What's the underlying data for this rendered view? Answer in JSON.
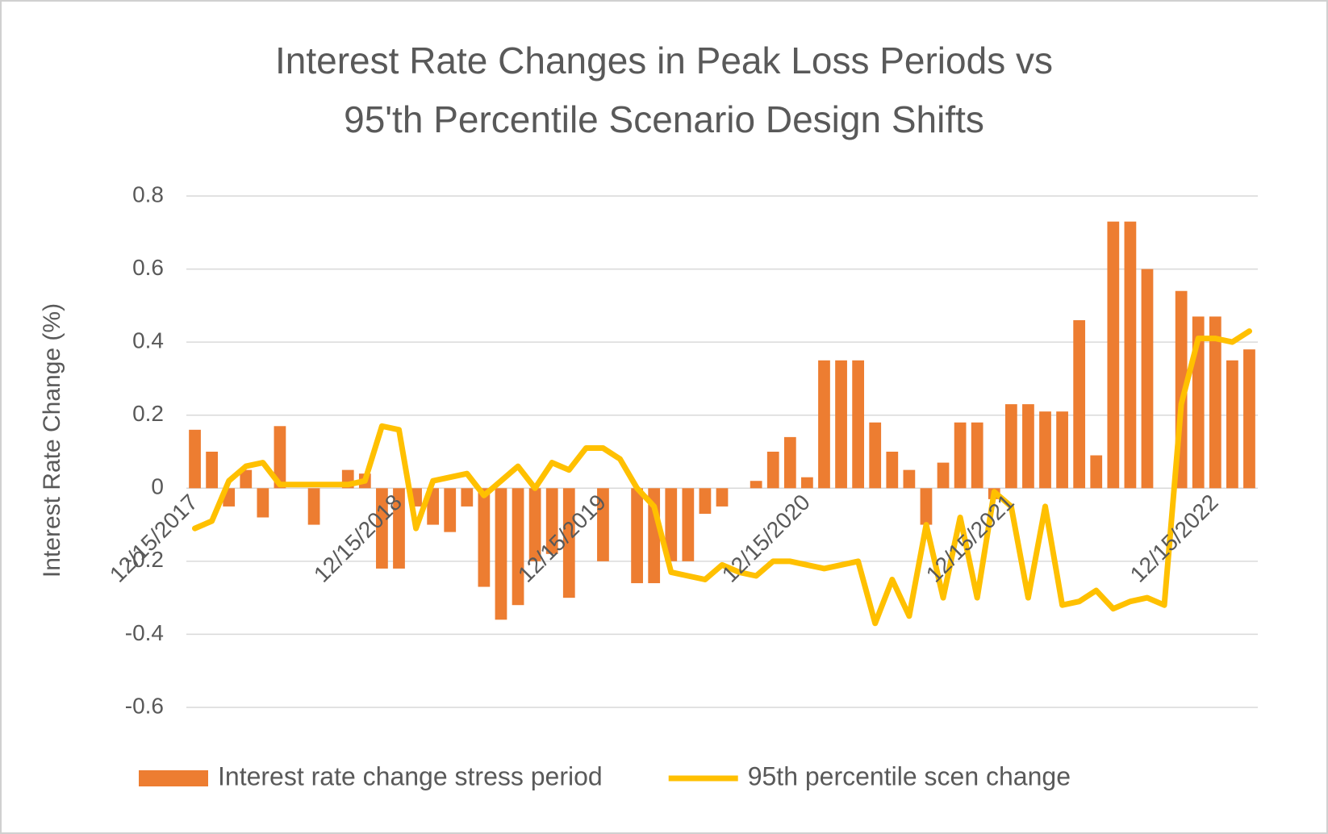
{
  "chart_data": {
    "type": "bar-line",
    "title": [
      "Interest Rate Changes in Peak Loss Periods vs",
      "95'th Percentile Scenario Design Shifts"
    ],
    "y_label": "Interest Rate Change (%)",
    "categories": [
      "12/15/2017",
      null,
      null,
      null,
      null,
      null,
      null,
      null,
      null,
      null,
      null,
      null,
      "12/15/2018",
      null,
      null,
      null,
      null,
      null,
      null,
      null,
      null,
      null,
      null,
      null,
      "12/15/2019",
      null,
      null,
      null,
      null,
      null,
      null,
      null,
      null,
      null,
      null,
      null,
      "12/15/2020",
      null,
      null,
      null,
      null,
      null,
      null,
      null,
      null,
      null,
      null,
      null,
      "12/15/2021",
      null,
      null,
      null,
      null,
      null,
      null,
      null,
      null,
      null,
      null,
      null,
      "12/15/2022",
      null,
      null
    ],
    "series": [
      {
        "name": "Interest rate change stress period",
        "kind": "bar",
        "color": "#ed7d31",
        "values": [
          0.16,
          0.1,
          -0.05,
          0.05,
          -0.08,
          0.17,
          0,
          -0.1,
          0,
          0.05,
          0.04,
          -0.22,
          -0.22,
          -0.05,
          -0.1,
          -0.12,
          -0.05,
          -0.27,
          -0.36,
          -0.32,
          -0.2,
          -0.18,
          -0.3,
          0,
          -0.2,
          0,
          -0.26,
          -0.26,
          -0.2,
          -0.2,
          -0.07,
          -0.05,
          0,
          0.02,
          0.1,
          0.14,
          0.03,
          0.35,
          0.35,
          0.35,
          0.18,
          0.1,
          0.05,
          -0.1,
          0.07,
          0.18,
          0.18,
          -0.03,
          0.23,
          0.23,
          0.21,
          0.21,
          0.46,
          0.09,
          0.73,
          0.73,
          0.6,
          0,
          0.54,
          0.47,
          0.47,
          0.35,
          0.38
        ]
      },
      {
        "name": "95th percentile scen change",
        "kind": "line",
        "color": "#ffc000",
        "values": [
          -0.11,
          -0.09,
          0.02,
          0.06,
          0.07,
          0.01,
          0.01,
          0.01,
          0.01,
          0.01,
          0.02,
          0.17,
          0.16,
          -0.11,
          0.02,
          0.03,
          0.04,
          -0.02,
          0.02,
          0.06,
          0,
          0.07,
          0.05,
          0.11,
          0.11,
          0.08,
          0,
          -0.05,
          -0.23,
          -0.24,
          -0.25,
          -0.21,
          -0.23,
          -0.24,
          -0.2,
          -0.2,
          -0.21,
          -0.22,
          -0.21,
          -0.2,
          -0.37,
          -0.25,
          -0.35,
          -0.1,
          -0.3,
          -0.08,
          -0.3,
          -0.01,
          -0.05,
          -0.3,
          -0.05,
          -0.32,
          -0.31,
          -0.28,
          -0.33,
          -0.31,
          -0.3,
          -0.32,
          0.23,
          0.41,
          0.41,
          0.4,
          0.43
        ]
      }
    ],
    "ylim": [
      -0.6,
      0.8
    ],
    "yticks": [
      -0.6,
      {
        "value": -0.4,
        "label": "-0.4"
      },
      {
        "value": -0.2,
        "label": "-0.2"
      },
      0,
      0.2,
      0.4,
      0.6,
      0.8
    ],
    "grid": true,
    "legend": "bottom"
  }
}
